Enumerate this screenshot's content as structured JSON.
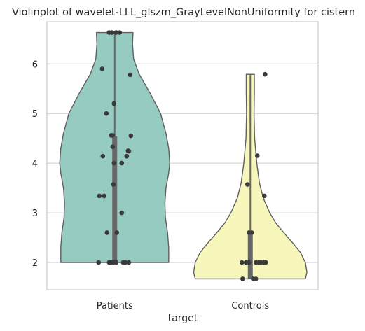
{
  "chart_data": {
    "type": "violin",
    "title": "Violinplot of wavelet-LLL_glszm_GrayLevelNonUniformity for cistern",
    "xlabel": "target",
    "ylabel": "",
    "categories": [
      "Patients",
      "Controls"
    ],
    "ylim": [
      1.45,
      6.85
    ],
    "yticks": [
      2,
      3,
      4,
      5,
      6
    ],
    "grid": "horizontal",
    "series": [
      {
        "category": "Patients",
        "color": "#96cbc2",
        "range": [
          2.0,
          6.63
        ],
        "quartiles": [
          2.0,
          4.54
        ],
        "profile": [
          {
            "y": 2.0,
            "w": 1.0
          },
          {
            "y": 2.3,
            "w": 1.0
          },
          {
            "y": 2.6,
            "w": 0.98
          },
          {
            "y": 2.9,
            "w": 0.94
          },
          {
            "y": 3.2,
            "w": 0.93
          },
          {
            "y": 3.5,
            "w": 0.95
          },
          {
            "y": 3.8,
            "w": 1.0
          },
          {
            "y": 4.0,
            "w": 1.02
          },
          {
            "y": 4.3,
            "w": 1.0
          },
          {
            "y": 4.6,
            "w": 0.95
          },
          {
            "y": 5.0,
            "w": 0.85
          },
          {
            "y": 5.4,
            "w": 0.66
          },
          {
            "y": 5.8,
            "w": 0.45
          },
          {
            "y": 6.1,
            "w": 0.35
          },
          {
            "y": 6.4,
            "w": 0.33
          },
          {
            "y": 6.63,
            "w": 0.34
          }
        ],
        "points": [
          {
            "j": -0.08,
            "y": 6.63
          },
          {
            "j": -0.04,
            "y": 6.63
          },
          {
            "j": 0.02,
            "y": 6.63
          },
          {
            "j": 0.07,
            "y": 6.63
          },
          {
            "j": -0.18,
            "y": 5.9
          },
          {
            "j": 0.22,
            "y": 5.78
          },
          {
            "j": -0.01,
            "y": 5.2
          },
          {
            "j": -0.12,
            "y": 5.0
          },
          {
            "j": -0.05,
            "y": 4.56
          },
          {
            "j": -0.03,
            "y": 4.56
          },
          {
            "j": 0.23,
            "y": 4.55
          },
          {
            "j": -0.03,
            "y": 4.33
          },
          {
            "j": 0.19,
            "y": 4.25
          },
          {
            "j": 0.2,
            "y": 4.24
          },
          {
            "j": -0.17,
            "y": 4.14
          },
          {
            "j": 0.17,
            "y": 4.14
          },
          {
            "j": -0.01,
            "y": 4.0
          },
          {
            "j": 0.1,
            "y": 4.0
          },
          {
            "j": -0.02,
            "y": 3.57
          },
          {
            "j": -0.22,
            "y": 3.34
          },
          {
            "j": -0.15,
            "y": 3.34
          },
          {
            "j": 0.1,
            "y": 3.0
          },
          {
            "j": -0.11,
            "y": 2.6
          },
          {
            "j": 0.03,
            "y": 2.6
          },
          {
            "j": -0.23,
            "y": 2.0
          },
          {
            "j": -0.08,
            "y": 2.0
          },
          {
            "j": -0.05,
            "y": 2.0
          },
          {
            "j": -0.02,
            "y": 2.0
          },
          {
            "j": 0.02,
            "y": 2.0
          },
          {
            "j": 0.12,
            "y": 2.0
          },
          {
            "j": 0.15,
            "y": 2.0
          },
          {
            "j": 0.2,
            "y": 2.0
          }
        ]
      },
      {
        "category": "Controls",
        "color": "#f7f7bc",
        "range": [
          1.67,
          5.79
        ],
        "quartiles": [
          1.67,
          2.6
        ],
        "profile": [
          {
            "y": 1.67,
            "w": 1.02
          },
          {
            "y": 1.8,
            "w": 1.05
          },
          {
            "y": 2.0,
            "w": 1.02
          },
          {
            "y": 2.2,
            "w": 0.93
          },
          {
            "y": 2.4,
            "w": 0.78
          },
          {
            "y": 2.6,
            "w": 0.62
          },
          {
            "y": 2.8,
            "w": 0.47
          },
          {
            "y": 3.0,
            "w": 0.36
          },
          {
            "y": 3.3,
            "w": 0.24
          },
          {
            "y": 3.6,
            "w": 0.17
          },
          {
            "y": 4.0,
            "w": 0.12
          },
          {
            "y": 4.5,
            "w": 0.08
          },
          {
            "y": 5.0,
            "w": 0.07
          },
          {
            "y": 5.4,
            "w": 0.075
          },
          {
            "y": 5.79,
            "w": 0.075
          }
        ],
        "points": [
          {
            "j": 0.21,
            "y": 5.79
          },
          {
            "j": 0.1,
            "y": 4.15
          },
          {
            "j": -0.04,
            "y": 3.57
          },
          {
            "j": 0.2,
            "y": 3.34
          },
          {
            "j": -0.02,
            "y": 2.6
          },
          {
            "j": 0.02,
            "y": 2.6
          },
          {
            "j": -0.12,
            "y": 2.0
          },
          {
            "j": -0.06,
            "y": 2.0
          },
          {
            "j": -0.02,
            "y": 2.0
          },
          {
            "j": 0.08,
            "y": 2.0
          },
          {
            "j": 0.12,
            "y": 2.0
          },
          {
            "j": 0.15,
            "y": 2.0
          },
          {
            "j": 0.19,
            "y": 2.0
          },
          {
            "j": 0.22,
            "y": 2.0
          },
          {
            "j": -0.11,
            "y": 1.67
          },
          {
            "j": 0.04,
            "y": 1.67
          },
          {
            "j": 0.08,
            "y": 1.67
          }
        ]
      }
    ]
  }
}
